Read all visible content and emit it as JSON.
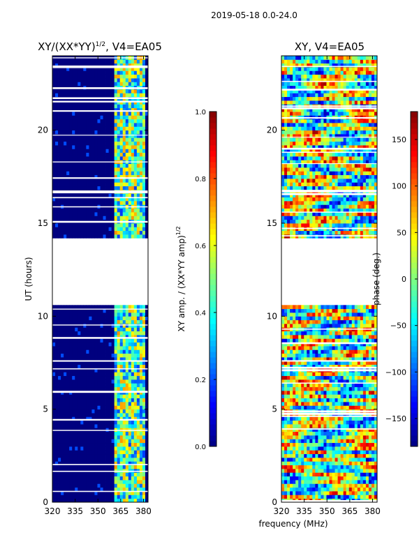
{
  "figure": {
    "suptitle": "2019-05-18 0.0-24.0",
    "xlabel_shared": "frequency (MHz)"
  },
  "colors": {
    "jet": [
      "#00007f",
      "#0000ff",
      "#007fff",
      "#00ffff",
      "#7fff7f",
      "#ffff00",
      "#ff7f00",
      "#ff0000",
      "#7f0000"
    ],
    "frame": "#000000",
    "gap": "#ffffff"
  },
  "chart_data": [
    {
      "id": "amp",
      "type": "heatmap",
      "title_main": "XY/(XX*YY)",
      "title_sup": "1/2",
      "title_tail": ", V4=EA05",
      "xlabel": "",
      "ylabel": "UT (hours)",
      "xlim": [
        320,
        383
      ],
      "ylim": [
        0,
        24
      ],
      "xticks": [
        320,
        335,
        350,
        365,
        380
      ],
      "yticks": [
        0,
        5,
        10,
        15,
        20
      ],
      "colorbar": {
        "label_main": "XY amp. / (XX*YY amp)",
        "label_sup": "1/2",
        "range": [
          0.0,
          1.0
        ],
        "ticks": [
          "0.0",
          "0.2",
          "0.4",
          "0.6",
          "0.8",
          "1.0"
        ],
        "tick_values": [
          0.0,
          0.2,
          0.4,
          0.6,
          0.8,
          1.0
        ]
      },
      "data_gaps_hours": [
        [
          10.55,
          14.15
        ]
      ],
      "bright_band_mhz": [
        361,
        381
      ]
    },
    {
      "id": "phase",
      "type": "heatmap",
      "title_main": "XY, V4=EA05",
      "xlabel": "frequency (MHz)",
      "ylabel": "",
      "xlim": [
        320,
        383
      ],
      "ylim": [
        0,
        24
      ],
      "xticks": [
        320,
        335,
        350,
        365,
        380
      ],
      "yticks": [
        0,
        5,
        10,
        15,
        20
      ],
      "colorbar": {
        "label_main": "phase (deg.)",
        "range": [
          -180,
          180
        ],
        "ticks": [
          "−150",
          "−100",
          "−50",
          "0",
          "50",
          "100",
          "150"
        ],
        "tick_values": [
          -150,
          -100,
          -50,
          0,
          50,
          100,
          150
        ]
      },
      "data_gaps_hours": [
        [
          10.55,
          14.15
        ]
      ]
    }
  ]
}
